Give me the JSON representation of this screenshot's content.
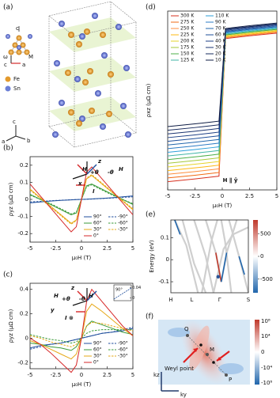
{
  "panel_labels": [
    "(a)",
    "(b)",
    "(c)",
    "(d)",
    "(e)",
    "(f)"
  ],
  "structure": {
    "legend": [
      {
        "label": "Fe",
        "color": "#e39a2d"
      },
      {
        "label": "Sn",
        "color": "#6b7fd6"
      }
    ],
    "axis_labels": [
      "c",
      "a",
      "c",
      "a",
      "b"
    ],
    "symbols": [
      "ω",
      "M"
    ]
  },
  "chart_data": [
    {
      "type": "line",
      "xlabel": "μ₀H (T)",
      "ylabel": "ρyz (μΩ cm)",
      "x": [
        -5,
        -4,
        -3,
        -2,
        -1,
        -0.5,
        0,
        0.5,
        1,
        2,
        3,
        4,
        5
      ],
      "xlim": [
        -5,
        5
      ],
      "xticks": [
        -5,
        -2.5,
        0,
        2.5,
        5
      ],
      "ylim": [
        -0.25,
        0.25
      ],
      "yticks": [
        -0.2,
        -0.1,
        0,
        0.1,
        0.2
      ],
      "legend": "lower right",
      "annotations": [
        "H",
        "+θ",
        "-θ",
        "H",
        "z",
        "x",
        "I"
      ],
      "series": [
        {
          "name": "90°",
          "color": "#1f4e9c",
          "dash": false,
          "values": [
            -0.02,
            -0.015,
            -0.01,
            -0.006,
            -0.003,
            -0.001,
            0,
            0.001,
            0.003,
            0.006,
            0.01,
            0.015,
            0.02
          ]
        },
        {
          "name": "-90°",
          "color": "#1f4e9c",
          "dash": true,
          "values": [
            -0.015,
            -0.012,
            -0.008,
            -0.005,
            -0.002,
            -0.001,
            0,
            0.001,
            0.002,
            0.005,
            0.008,
            0.012,
            0.015
          ]
        },
        {
          "name": "60°",
          "color": "#3a9a3a",
          "dash": false,
          "values": [
            0.03,
            0,
            -0.03,
            -0.06,
            -0.09,
            -0.08,
            0,
            0.08,
            0.09,
            0.06,
            0.03,
            0,
            -0.03
          ]
        },
        {
          "name": "-60°",
          "color": "#3a9a3a",
          "dash": true,
          "values": [
            0.025,
            0,
            -0.025,
            -0.055,
            -0.085,
            -0.075,
            0,
            0.075,
            0.085,
            0.055,
            0.025,
            0,
            -0.025
          ]
        },
        {
          "name": "30°",
          "color": "#e6a817",
          "dash": false,
          "values": [
            0.06,
            0.01,
            -0.04,
            -0.09,
            -0.14,
            -0.12,
            0,
            0.12,
            0.14,
            0.09,
            0.04,
            -0.01,
            -0.06
          ]
        },
        {
          "name": "-30°",
          "color": "#e6a817",
          "dash": true,
          "values": [
            0.055,
            0.005,
            -0.045,
            -0.095,
            -0.145,
            -0.125,
            0,
            0.125,
            0.145,
            0.095,
            0.045,
            -0.005,
            -0.055
          ]
        },
        {
          "name": "0°",
          "color": "#d62728",
          "dash": false,
          "values": [
            0.09,
            0.02,
            -0.05,
            -0.12,
            -0.19,
            -0.16,
            0,
            0.16,
            0.19,
            0.12,
            0.05,
            -0.02,
            -0.09
          ]
        }
      ]
    },
    {
      "type": "line",
      "xlabel": "μ₀H (T)",
      "ylabel": "ρyz (μΩ cm)",
      "x": [
        -5,
        -4,
        -3,
        -2,
        -1,
        -0.5,
        0,
        0.5,
        1,
        2,
        3,
        4,
        5
      ],
      "xlim": [
        -5,
        5
      ],
      "xticks": [
        -5,
        -2.5,
        0,
        2.5,
        5
      ],
      "ylim": [
        -0.25,
        0.45
      ],
      "yticks": [
        -0.2,
        0,
        0.2,
        0.4
      ],
      "legend": "lower right",
      "annotations": [
        "H",
        "+θ",
        "-θ",
        "H",
        "z",
        "y",
        "I ⊗"
      ],
      "inset": {
        "label": "90°",
        "yticks": [
          0,
          0.04
        ],
        "ylim": [
          -0.01,
          0.05
        ]
      },
      "series": [
        {
          "name": "90°",
          "color": "#1f4e9c",
          "dash": false,
          "values": [
            -0.08,
            -0.06,
            -0.05,
            -0.04,
            -0.02,
            -0.01,
            0,
            0.01,
            0.02,
            0.04,
            0.05,
            0.06,
            0.08
          ]
        },
        {
          "name": "-90°",
          "color": "#1f4e9c",
          "dash": true,
          "values": [
            -0.09,
            -0.07,
            -0.05,
            -0.04,
            -0.02,
            -0.01,
            0,
            0.01,
            0.02,
            0.04,
            0.05,
            0.07,
            0.09
          ]
        },
        {
          "name": "60°",
          "color": "#3a9a3a",
          "dash": false,
          "values": [
            -0.04,
            -0.05,
            -0.07,
            -0.08,
            -0.1,
            -0.07,
            0,
            0.1,
            0.14,
            0.11,
            0.08,
            0.05,
            0.03
          ]
        },
        {
          "name": "-60°",
          "color": "#3a9a3a",
          "dash": true,
          "values": [
            0.03,
            0.01,
            -0.01,
            -0.02,
            -0.04,
            -0.03,
            0,
            0.04,
            0.06,
            0.07,
            0.07,
            0.07,
            0.07
          ]
        },
        {
          "name": "30°",
          "color": "#e6a817",
          "dash": false,
          "values": [
            -0.02,
            -0.05,
            -0.09,
            -0.13,
            -0.17,
            -0.13,
            0,
            0.22,
            0.28,
            0.22,
            0.15,
            0.08,
            0.02
          ]
        },
        {
          "name": "-30°",
          "color": "#e6a817",
          "dash": true,
          "values": [
            0.02,
            0,
            -0.03,
            -0.05,
            -0.07,
            -0.05,
            0,
            0.1,
            0.13,
            0.12,
            0.1,
            0.08,
            0.06
          ]
        },
        {
          "name": "0°",
          "color": "#d62728",
          "dash": false,
          "values": [
            0,
            -0.05,
            -0.12,
            -0.2,
            -0.28,
            -0.22,
            0,
            0.3,
            0.4,
            0.3,
            0.2,
            0.1,
            0.02
          ]
        }
      ]
    },
    {
      "type": "line",
      "xlabel": "μ₀H (T)",
      "ylabel": "ρxz (μΩ cm)",
      "x": [
        -5,
        -2.5,
        -1,
        -0.3,
        0.3,
        1,
        2.5,
        5
      ],
      "xlim": [
        -5,
        5
      ],
      "xticks": [
        -5,
        -2.5,
        0,
        2.5,
        5
      ],
      "ylim": [
        -1.1,
        0.85
      ],
      "legend": "upper left",
      "annotations": [
        "H ∥ ŷ"
      ],
      "series": [
        {
          "name": "300 K",
          "color": "#d7301f",
          "dash": false,
          "values": [
            -1.01,
            -0.98,
            -0.96,
            -0.95,
            0.55,
            0.56,
            0.58,
            0.61
          ]
        },
        {
          "name": "275 K",
          "color": "#f16913",
          "dash": false,
          "values": [
            -0.97,
            -0.94,
            -0.92,
            -0.91,
            0.56,
            0.57,
            0.59,
            0.62
          ]
        },
        {
          "name": "250 K",
          "color": "#fd8d3c",
          "dash": false,
          "values": [
            -0.93,
            -0.9,
            -0.88,
            -0.87,
            0.56,
            0.57,
            0.59,
            0.62
          ]
        },
        {
          "name": "225 K",
          "color": "#fdb813",
          "dash": false,
          "values": [
            -0.89,
            -0.86,
            -0.84,
            -0.83,
            0.57,
            0.58,
            0.6,
            0.63
          ]
        },
        {
          "name": "200 K",
          "color": "#e6d32a",
          "dash": false,
          "values": [
            -0.85,
            -0.82,
            -0.8,
            -0.79,
            0.58,
            0.59,
            0.61,
            0.64
          ]
        },
        {
          "name": "175 K",
          "color": "#a6c93a",
          "dash": false,
          "values": [
            -0.81,
            -0.78,
            -0.76,
            -0.75,
            0.59,
            0.6,
            0.62,
            0.65
          ]
        },
        {
          "name": "150 K",
          "color": "#4daf4a",
          "dash": false,
          "values": [
            -0.77,
            -0.74,
            -0.72,
            -0.71,
            0.59,
            0.6,
            0.62,
            0.65
          ]
        },
        {
          "name": "125 K",
          "color": "#41b6a6",
          "dash": false,
          "values": [
            -0.73,
            -0.7,
            -0.68,
            -0.67,
            0.6,
            0.61,
            0.63,
            0.66
          ]
        },
        {
          "name": "110 K",
          "color": "#2c9fd9",
          "dash": false,
          "values": [
            -0.69,
            -0.66,
            -0.64,
            -0.63,
            0.61,
            0.62,
            0.64,
            0.67
          ]
        },
        {
          "name": "90 K",
          "color": "#2b7bc4",
          "dash": false,
          "values": [
            -0.65,
            -0.62,
            -0.6,
            -0.59,
            0.62,
            0.63,
            0.65,
            0.68
          ]
        },
        {
          "name": "70 K",
          "color": "#2166ac",
          "dash": false,
          "values": [
            -0.61,
            -0.58,
            -0.56,
            -0.55,
            0.62,
            0.63,
            0.65,
            0.68
          ]
        },
        {
          "name": "60 K",
          "color": "#1f4f9a",
          "dash": false,
          "values": [
            -0.57,
            -0.54,
            -0.52,
            -0.51,
            0.63,
            0.64,
            0.66,
            0.69
          ]
        },
        {
          "name": "40 K",
          "color": "#1d3f85",
          "dash": false,
          "values": [
            -0.53,
            -0.5,
            -0.48,
            -0.47,
            0.64,
            0.65,
            0.67,
            0.7
          ]
        },
        {
          "name": "30 K",
          "color": "#1a3370",
          "dash": false,
          "values": [
            -0.49,
            -0.46,
            -0.44,
            -0.43,
            0.65,
            0.66,
            0.68,
            0.71
          ]
        },
        {
          "name": "20 K",
          "color": "#15285c",
          "dash": false,
          "values": [
            -0.45,
            -0.42,
            -0.4,
            -0.39,
            0.65,
            0.66,
            0.68,
            0.71
          ]
        },
        {
          "name": "10 K",
          "color": "#0f1d45",
          "dash": false,
          "values": [
            -0.41,
            -0.38,
            -0.36,
            -0.35,
            0.66,
            0.67,
            0.69,
            0.72
          ]
        }
      ]
    },
    {
      "type": "band",
      "ylabel": "Energy (eV)",
      "categories": [
        "H",
        "L",
        "Γ",
        "S"
      ],
      "ylim": [
        -0.15,
        0.18
      ],
      "yticks": [
        -0.1,
        0,
        0.1
      ],
      "colorbar": {
        "lim": [
          -800,
          800
        ],
        "ticks": [
          -500,
          0,
          500
        ]
      }
    }
  ],
  "weyl": {
    "points": [
      "Q",
      "M",
      "P"
    ],
    "annotation": "Weyl point",
    "axes": [
      "kz",
      "ky"
    ],
    "colorbar": [
      "10⁸",
      "10⁴",
      "0",
      "-10⁴",
      "-10⁸"
    ]
  }
}
